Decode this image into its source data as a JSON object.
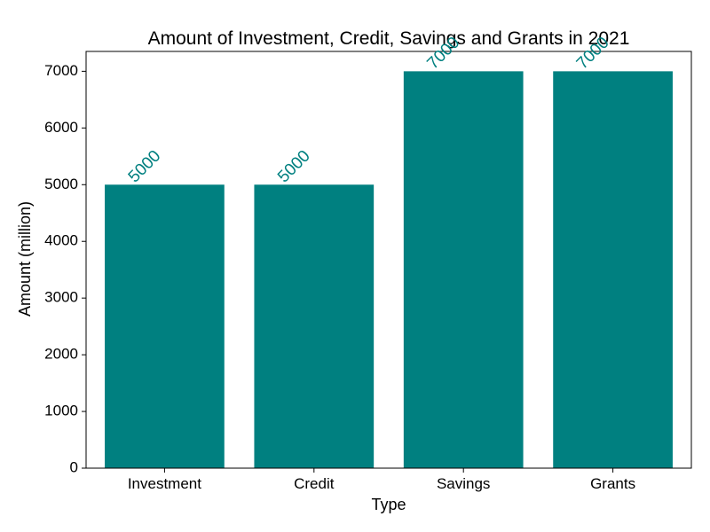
{
  "chart_data": {
    "type": "bar",
    "title": "Amount of Investment, Credit, Savings and Grants in 2021",
    "xlabel": "Type",
    "ylabel": "Amount (million)",
    "categories": [
      "Investment",
      "Credit",
      "Savings",
      "Grants"
    ],
    "values": [
      5000,
      5000,
      7000,
      7000
    ],
    "data_labels": [
      "5000",
      "5000",
      "7000",
      "7000"
    ],
    "ylim": [
      0,
      7350
    ],
    "yticks": [
      0,
      1000,
      2000,
      3000,
      4000,
      5000,
      6000,
      7000
    ],
    "ytick_labels": [
      "0",
      "1000",
      "2000",
      "3000",
      "4000",
      "5000",
      "6000",
      "7000"
    ],
    "bar_color": "#008080",
    "label_color": "#008080",
    "grid": false,
    "legend": "none"
  }
}
